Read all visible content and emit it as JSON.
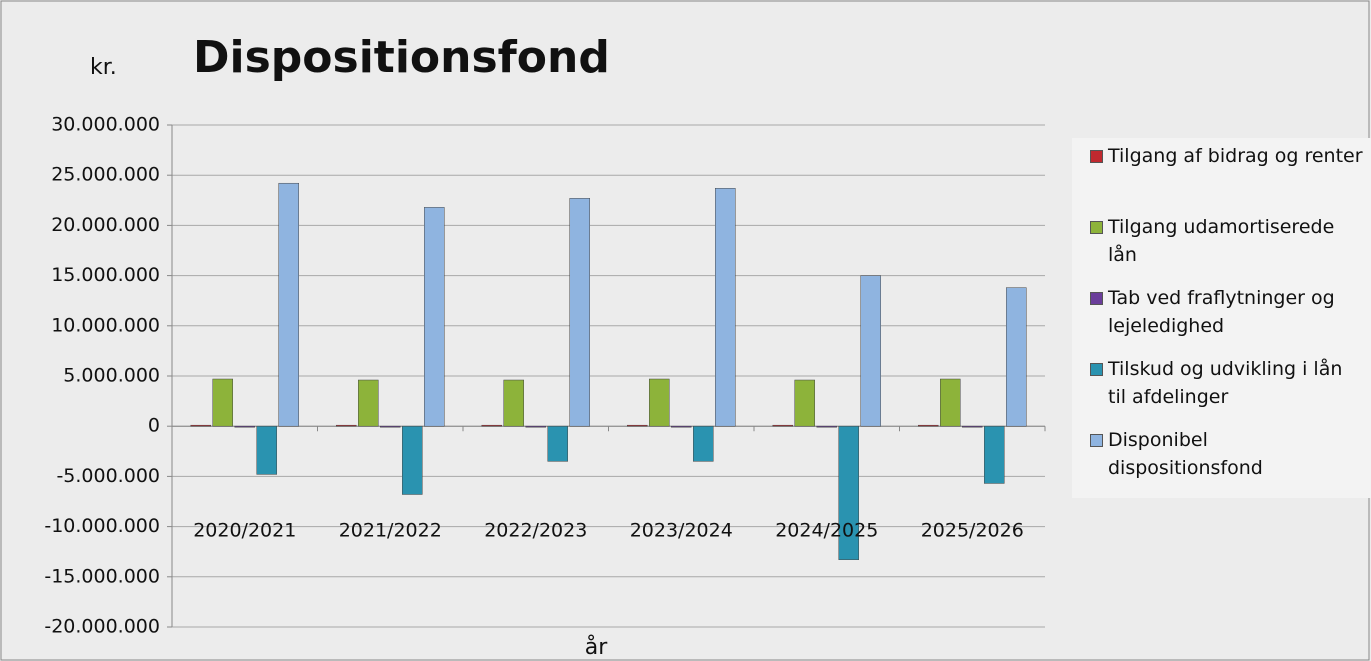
{
  "chart_data": {
    "type": "bar",
    "title": "Dispositionsfond",
    "y_unit": "kr.",
    "x_label": "år",
    "categories": [
      "2020/2021",
      "2021/2022",
      "2022/2023",
      "2023/2024",
      "2024/2025",
      "2025/2026"
    ],
    "series": [
      {
        "name": "Tilgang af bidrag og renter",
        "color": "#c0292f",
        "values": [
          100000,
          100000,
          100000,
          100000,
          100000,
          100000
        ]
      },
      {
        "name": "Tilgang udamortiserede lån",
        "color": "#8db33a",
        "values": [
          4700000,
          4600000,
          4600000,
          4700000,
          4600000,
          4700000
        ]
      },
      {
        "name": "Tab ved fraflytninger og lejeledighed",
        "color": "#6a3d9a",
        "values": [
          -100000,
          -100000,
          -100000,
          -100000,
          -100000,
          -100000
        ]
      },
      {
        "name": "Tilskud og udvikling i lån til afdelinger",
        "color": "#2a93b0",
        "values": [
          -4800000,
          -6800000,
          -3500000,
          -3500000,
          -13300000,
          -5700000
        ]
      },
      {
        "name": "Disponibel dispositionsfond",
        "color": "#8fb4e0",
        "values": [
          24200000,
          21800000,
          22700000,
          23700000,
          15000000,
          13800000
        ]
      }
    ],
    "ylim": [
      -20000000,
      30000000
    ],
    "yticks": [
      {
        "value": -20000000,
        "label": "-20.000.000"
      },
      {
        "value": -15000000,
        "label": "-15.000.000"
      },
      {
        "value": -10000000,
        "label": "-10.000.000"
      },
      {
        "value": -5000000,
        "label": "-5.000.000"
      },
      0,
      {
        "value": 5000000,
        "label": "5.000.000"
      },
      {
        "value": 10000000,
        "label": "10.000.000"
      },
      {
        "value": 15000000,
        "label": "15.000.000"
      },
      {
        "value": 20000000,
        "label": "20.000.000"
      },
      {
        "value": 25000000,
        "label": "25.000.000"
      },
      {
        "value": 30000000,
        "label": "30.000.000"
      }
    ],
    "grid": true,
    "legend": "right"
  }
}
